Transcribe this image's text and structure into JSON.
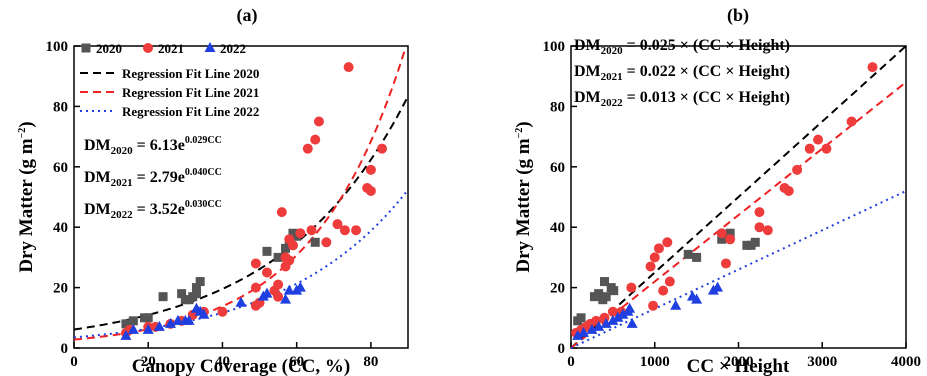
{
  "chart_data": [
    {
      "type": "scatter",
      "panel_label": "(a)",
      "xlabel": "Canopy Coverage (CC, %)",
      "ylabel_main": "Dry Matter (g m",
      "ylabel_exp": "−2",
      "ylabel_close": ")",
      "xlim": [
        0,
        90
      ],
      "ylim": [
        0,
        100
      ],
      "xticks": [
        0,
        20,
        40,
        60,
        80
      ],
      "yticks": [
        0,
        20,
        40,
        60,
        80,
        100
      ],
      "legend_placement": "top-left",
      "series": [
        {
          "name": "2020",
          "color": "#555555",
          "marker": "square",
          "points": [
            [
              14,
              8
            ],
            [
              16,
              9
            ],
            [
              19,
              10
            ],
            [
              20,
              10
            ],
            [
              24,
              17
            ],
            [
              29,
              18
            ],
            [
              30,
              16
            ],
            [
              31,
              16
            ],
            [
              32,
              17
            ],
            [
              33,
              18
            ],
            [
              33,
              20
            ],
            [
              34,
              22
            ],
            [
              52,
              32
            ],
            [
              55,
              30
            ],
            [
              57,
              33
            ],
            [
              58,
              35
            ],
            [
              59,
              38
            ],
            [
              60,
              37
            ],
            [
              65,
              35
            ]
          ]
        },
        {
          "name": "2021",
          "color": "#ee3b3b",
          "marker": "circle",
          "points": [
            [
              14,
              5
            ],
            [
              15,
              6
            ],
            [
              20,
              7
            ],
            [
              22,
              7
            ],
            [
              26,
              8
            ],
            [
              29,
              9
            ],
            [
              32,
              11
            ],
            [
              35,
              12
            ],
            [
              40,
              12
            ],
            [
              49,
              14
            ],
            [
              49,
              20
            ],
            [
              49,
              28
            ],
            [
              50,
              15
            ],
            [
              52,
              25
            ],
            [
              54,
              19
            ],
            [
              55,
              17
            ],
            [
              55,
              21
            ],
            [
              56,
              45
            ],
            [
              57,
              27
            ],
            [
              57,
              30
            ],
            [
              58,
              29
            ],
            [
              58,
              36
            ],
            [
              59,
              34
            ],
            [
              61,
              38
            ],
            [
              63,
              66
            ],
            [
              64,
              39
            ],
            [
              65,
              69
            ],
            [
              66,
              75
            ],
            [
              68,
              35
            ],
            [
              71,
              41
            ],
            [
              73,
              39
            ],
            [
              74,
              93
            ],
            [
              76,
              39
            ],
            [
              79,
              53
            ],
            [
              80,
              52
            ],
            [
              80,
              59
            ],
            [
              83,
              66
            ]
          ]
        },
        {
          "name": "2022",
          "color": "#1f3fe0",
          "marker": "triangle",
          "points": [
            [
              14,
              4
            ],
            [
              16,
              6
            ],
            [
              20,
              6
            ],
            [
              23,
              7
            ],
            [
              26,
              8
            ],
            [
              28,
              9
            ],
            [
              30,
              9
            ],
            [
              31,
              9
            ],
            [
              33,
              13
            ],
            [
              34,
              12
            ],
            [
              35,
              11
            ],
            [
              45,
              15
            ],
            [
              51,
              17
            ],
            [
              52,
              18
            ],
            [
              57,
              16
            ],
            [
              58,
              19
            ],
            [
              60,
              19
            ],
            [
              61,
              20
            ]
          ]
        }
      ],
      "fits": [
        {
          "name": "Regression Fit Line 2020",
          "color": "#000000",
          "dash": "dash",
          "a": 6.13,
          "b": 0.029
        },
        {
          "name": "Regression Fit Line 2021",
          "color": "#ee2222",
          "dash": "dash",
          "a": 2.79,
          "b": 0.04
        },
        {
          "name": "Regression Fit Line 2022",
          "color": "#1f3fe0",
          "dash": "dot",
          "a": 3.52,
          "b": 0.03
        }
      ],
      "equations": [
        {
          "lhs": "DM",
          "sub": "2020",
          "rhs": " = 6.13e",
          "sup": "0.029CC"
        },
        {
          "lhs": "DM",
          "sub": "2021",
          "rhs": " = 2.79e",
          "sup": "0.040CC"
        },
        {
          "lhs": "DM",
          "sub": "2022",
          "rhs": " = 3.52e",
          "sup": "0.030CC"
        }
      ]
    },
    {
      "type": "scatter",
      "panel_label": "(b)",
      "xlabel": "CC × Height",
      "ylabel_main": "Dry Matter (g m",
      "ylabel_exp": "−2",
      "ylabel_close": ")",
      "xlim": [
        0,
        4000
      ],
      "ylim": [
        0,
        100
      ],
      "xticks": [
        0,
        1000,
        2000,
        3000,
        4000
      ],
      "yticks": [
        0,
        20,
        40,
        60,
        80,
        100
      ],
      "series": [
        {
          "name": "2020",
          "color": "#555555",
          "marker": "square",
          "points": [
            [
              80,
              9
            ],
            [
              120,
              10
            ],
            [
              280,
              17
            ],
            [
              330,
              18
            ],
            [
              380,
              16
            ],
            [
              400,
              22
            ],
            [
              420,
              17
            ],
            [
              480,
              20
            ],
            [
              510,
              19
            ],
            [
              1400,
              31
            ],
            [
              1500,
              30
            ],
            [
              1800,
              36
            ],
            [
              1900,
              38
            ],
            [
              2100,
              34
            ],
            [
              2150,
              34
            ],
            [
              2200,
              35
            ]
          ]
        },
        {
          "name": "2021",
          "color": "#ee3b3b",
          "marker": "circle",
          "points": [
            [
              60,
              5
            ],
            [
              120,
              6
            ],
            [
              180,
              7
            ],
            [
              230,
              8
            ],
            [
              300,
              9
            ],
            [
              400,
              10
            ],
            [
              500,
              12
            ],
            [
              600,
              12
            ],
            [
              720,
              20
            ],
            [
              950,
              27
            ],
            [
              980,
              14
            ],
            [
              1000,
              30
            ],
            [
              1050,
              33
            ],
            [
              1100,
              19
            ],
            [
              1150,
              35
            ],
            [
              1180,
              22
            ],
            [
              1800,
              38
            ],
            [
              1850,
              28
            ],
            [
              1900,
              36
            ],
            [
              2250,
              40
            ],
            [
              2250,
              45
            ],
            [
              2350,
              39
            ],
            [
              2550,
              53
            ],
            [
              2600,
              52
            ],
            [
              2700,
              59
            ],
            [
              2850,
              66
            ],
            [
              2950,
              69
            ],
            [
              3050,
              66
            ],
            [
              3350,
              75
            ],
            [
              3600,
              93
            ]
          ]
        },
        {
          "name": "2022",
          "color": "#1f3fe0",
          "marker": "triangle",
          "points": [
            [
              80,
              4
            ],
            [
              150,
              5
            ],
            [
              250,
              6
            ],
            [
              330,
              7
            ],
            [
              420,
              8
            ],
            [
              500,
              9
            ],
            [
              560,
              10
            ],
            [
              620,
              11
            ],
            [
              680,
              12
            ],
            [
              700,
              13
            ],
            [
              730,
              8
            ],
            [
              1250,
              14
            ],
            [
              1450,
              17
            ],
            [
              1500,
              16
            ],
            [
              1700,
              19
            ],
            [
              1750,
              20
            ]
          ]
        }
      ],
      "fits": [
        {
          "name": "2020",
          "color": "#000000",
          "dash": "dash",
          "k": 0.025
        },
        {
          "name": "2021",
          "color": "#ee2222",
          "dash": "dash",
          "k": 0.022
        },
        {
          "name": "2022",
          "color": "#1f3fe0",
          "dash": "dot",
          "k": 0.013
        }
      ],
      "equations": [
        {
          "lhs": "DM",
          "sub": "2020",
          "rhs": " = 0.025 × (CC × Height)"
        },
        {
          "lhs": "DM",
          "sub": "2021",
          "rhs": " = 0.022 × (CC × Height)"
        },
        {
          "lhs": "DM",
          "sub": "2022",
          "rhs": " = 0.013 × (CC × Height)"
        }
      ]
    }
  ]
}
